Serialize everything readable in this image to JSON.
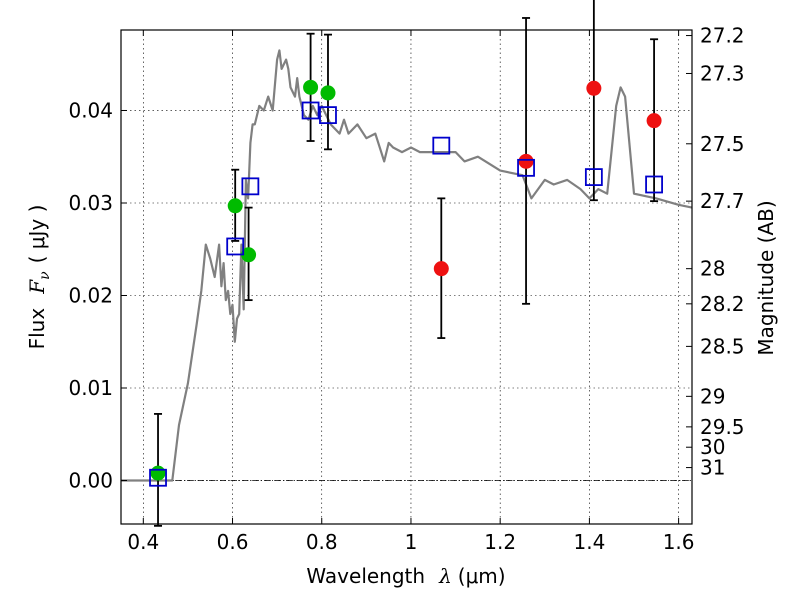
{
  "chart_data": {
    "type": "scatter",
    "title": "",
    "xlabel_prefix": "Wavelength",
    "xlabel_symbol": "λ",
    "xlabel_unit": "(μm)",
    "ylabel_prefix": "Flux",
    "ylabel_symbol": "F",
    "ylabel_subscript": "ν",
    "ylabel_unit": "( μJy )",
    "y2label": "Magnitude (AB)",
    "xlim": [
      0.35,
      1.63
    ],
    "ylim": [
      -0.0047,
      0.0487
    ],
    "grid": true,
    "x_ticks": [
      0.4,
      0.6,
      0.8,
      1.0,
      1.2,
      1.4,
      1.6
    ],
    "x_tick_labels": [
      "0.4",
      "0.6",
      "0.8",
      "1",
      "1.2",
      "1.4",
      "1.6"
    ],
    "y_ticks": [
      0.0,
      0.01,
      0.02,
      0.03,
      0.04
    ],
    "y_tick_labels": [
      "0.00",
      "0.01",
      "0.02",
      "0.03",
      "0.04"
    ],
    "y2_ticks": [
      {
        "label": "27.2",
        "flux": 0.0481
      },
      {
        "label": "27.3",
        "flux": 0.044
      },
      {
        "label": "27.5",
        "flux": 0.0364
      },
      {
        "label": "27.7",
        "flux": 0.0302
      },
      {
        "label": "28",
        "flux": 0.0229
      },
      {
        "label": "28.2",
        "flux": 0.0191
      },
      {
        "label": "28.5",
        "flux": 0.0145
      },
      {
        "label": "29",
        "flux": 0.0091
      },
      {
        "label": "29.5",
        "flux": 0.0058
      },
      {
        "label": "30",
        "flux": 0.0036
      },
      {
        "label": "31",
        "flux": 0.0014
      }
    ],
    "zero_line": 0.0,
    "colors": {
      "model": "#808080",
      "green": "#00bb00",
      "red": "#ee1111",
      "square": "#0000cc",
      "errorbar": "#000000",
      "grid": "#000000"
    },
    "model_spectrum": {
      "x": [
        0.35,
        0.45,
        0.465,
        0.48,
        0.5,
        0.52,
        0.53,
        0.54,
        0.55,
        0.56,
        0.57,
        0.575,
        0.58,
        0.585,
        0.59,
        0.595,
        0.6,
        0.605,
        0.61,
        0.615,
        0.62,
        0.625,
        0.63,
        0.635,
        0.64,
        0.645,
        0.65,
        0.66,
        0.67,
        0.68,
        0.69,
        0.7,
        0.705,
        0.71,
        0.72,
        0.725,
        0.73,
        0.74,
        0.745,
        0.75,
        0.76,
        0.77,
        0.78,
        0.79,
        0.8,
        0.82,
        0.84,
        0.85,
        0.86,
        0.88,
        0.9,
        0.92,
        0.94,
        0.95,
        0.96,
        0.98,
        1.0,
        1.02,
        1.05,
        1.08,
        1.1,
        1.12,
        1.15,
        1.2,
        1.25,
        1.27,
        1.3,
        1.32,
        1.35,
        1.38,
        1.4,
        1.42,
        1.44,
        1.46,
        1.47,
        1.48,
        1.5,
        1.55,
        1.6,
        1.63
      ],
      "y": [
        0.0,
        0.0,
        0.0,
        0.006,
        0.0105,
        0.017,
        0.0205,
        0.0255,
        0.024,
        0.022,
        0.0255,
        0.021,
        0.0235,
        0.0195,
        0.0205,
        0.018,
        0.019,
        0.015,
        0.0175,
        0.018,
        0.0255,
        0.0185,
        0.0325,
        0.0305,
        0.0365,
        0.0385,
        0.0385,
        0.0405,
        0.04,
        0.0415,
        0.04,
        0.0455,
        0.0465,
        0.0445,
        0.0455,
        0.0445,
        0.0425,
        0.0415,
        0.0435,
        0.0415,
        0.0395,
        0.039,
        0.0405,
        0.0395,
        0.0405,
        0.0385,
        0.0375,
        0.039,
        0.0375,
        0.0385,
        0.037,
        0.0375,
        0.0345,
        0.0365,
        0.036,
        0.0355,
        0.036,
        0.0355,
        0.0355,
        0.0355,
        0.0355,
        0.0345,
        0.035,
        0.0335,
        0.033,
        0.0305,
        0.0325,
        0.032,
        0.0325,
        0.0315,
        0.0305,
        0.0315,
        0.031,
        0.0405,
        0.0425,
        0.0415,
        0.031,
        0.0305,
        0.0298,
        0.0295
      ]
    },
    "series": [
      {
        "marker": "circle",
        "color_key": "green",
        "points": [
          {
            "x": 0.433,
            "y": 0.0008,
            "err_lo": 0.0057,
            "err_hi": 0.0064
          },
          {
            "x": 0.606,
            "y": 0.0297,
            "err_lo": 0.0038,
            "err_hi": 0.0039
          },
          {
            "x": 0.636,
            "y": 0.0244,
            "err_lo": 0.0049,
            "err_hi": 0.0051
          },
          {
            "x": 0.775,
            "y": 0.0425,
            "err_lo": 0.0058,
            "err_hi": 0.0058
          },
          {
            "x": 0.814,
            "y": 0.0419,
            "err_lo": 0.0061,
            "err_hi": 0.0063
          }
        ]
      },
      {
        "marker": "circle",
        "color_key": "red",
        "points": [
          {
            "x": 1.068,
            "y": 0.0229,
            "err_lo": 0.0075,
            "err_hi": 0.0076
          },
          {
            "x": 1.258,
            "y": 0.0345,
            "err_lo": 0.0154,
            "err_hi": 0.0155
          },
          {
            "x": 1.41,
            "y": 0.0424,
            "err_lo": 0.0121,
            "err_hi": 0.0121
          },
          {
            "x": 1.545,
            "y": 0.0389,
            "err_lo": 0.0087,
            "err_hi": 0.0088
          }
        ]
      },
      {
        "marker": "square",
        "color_key": "square",
        "points": [
          {
            "x": 0.433,
            "y": 0.0003
          },
          {
            "x": 0.606,
            "y": 0.0253
          },
          {
            "x": 0.64,
            "y": 0.0318
          },
          {
            "x": 0.775,
            "y": 0.04
          },
          {
            "x": 0.814,
            "y": 0.0395
          },
          {
            "x": 1.068,
            "y": 0.0362
          },
          {
            "x": 1.258,
            "y": 0.0338
          },
          {
            "x": 1.41,
            "y": 0.0328
          },
          {
            "x": 1.545,
            "y": 0.032
          }
        ]
      }
    ]
  }
}
